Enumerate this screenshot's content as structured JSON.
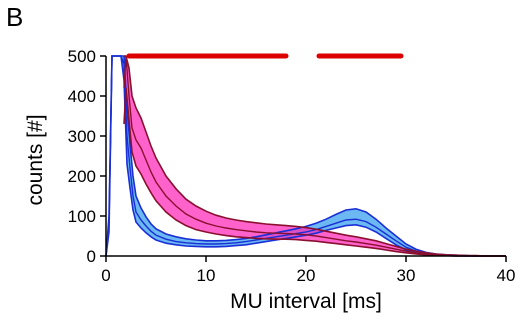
{
  "panel_label": "B",
  "colors": {
    "blue_band": "#3aa0ee",
    "blue_line": "#1a2fd6",
    "pink_band": "#ff2db8",
    "dark_line": "#8a1030",
    "significance": "#dd0000",
    "axis": "#000000"
  },
  "chart_data": {
    "type": "line",
    "xlabel": "MU interval [ms]",
    "ylabel": "counts [#]",
    "xlim": [
      0,
      40
    ],
    "ylim": [
      0,
      500
    ],
    "xticks": [
      0,
      10,
      20,
      30,
      40
    ],
    "yticks": [
      0,
      100,
      200,
      300,
      400,
      500
    ],
    "grid": false,
    "legend": "none",
    "series": [
      {
        "color": "#1a2fd6",
        "band_color": "#3aa0ee",
        "x": [
          0,
          0.3,
          0.6,
          0.9,
          1.2,
          1.5,
          1.8,
          2.1,
          2.4,
          2.7,
          3.0,
          3.5,
          4.0,
          4.5,
          5.0,
          6.0,
          7.0,
          8.0,
          9.0,
          10.0,
          11.0,
          12.0,
          13.0,
          14.0,
          15.0,
          16.0,
          17.0,
          18.0,
          19.0,
          20.0,
          21.0,
          22.0,
          23.0,
          24.0,
          25.0,
          26.0,
          27.0,
          28.0,
          29.0,
          30.0,
          31.0,
          32.0,
          33.0,
          34.0,
          35.0,
          36.0,
          37.0,
          38.0,
          39.0,
          40.0
        ],
        "y": [
          0,
          80,
          500,
          500,
          500,
          500,
          480,
          300,
          220,
          150,
          110,
          90,
          75,
          62,
          52,
          42,
          36,
          33,
          31,
          30,
          30,
          31,
          33,
          36,
          40,
          44,
          48,
          52,
          56,
          60,
          66,
          74,
          82,
          90,
          92,
          86,
          72,
          55,
          38,
          22,
          12,
          6,
          3,
          2,
          1,
          0,
          0,
          0,
          0,
          0
        ],
        "lower": [
          0,
          60,
          500,
          500,
          500,
          500,
          440,
          230,
          170,
          115,
          85,
          70,
          58,
          48,
          40,
          32,
          28,
          25,
          24,
          23,
          23,
          24,
          26,
          28,
          32,
          36,
          40,
          44,
          48,
          52,
          57,
          64,
          70,
          76,
          78,
          72,
          60,
          44,
          28,
          15,
          8,
          4,
          2,
          1,
          0,
          0,
          0,
          0,
          0,
          0
        ],
        "upper": [
          0,
          100,
          500,
          500,
          500,
          500,
          500,
          370,
          280,
          200,
          150,
          120,
          98,
          80,
          68,
          55,
          48,
          43,
          40,
          38,
          38,
          39,
          41,
          44,
          48,
          53,
          58,
          63,
          68,
          74,
          82,
          92,
          104,
          115,
          118,
          110,
          92,
          70,
          50,
          30,
          17,
          9,
          5,
          3,
          2,
          1,
          0,
          0,
          0,
          0
        ]
      },
      {
        "color": "#8a1030",
        "band_color": "#ff2db8",
        "x": [
          1.8,
          2.0,
          2.3,
          2.6,
          3.0,
          3.5,
          4.0,
          4.5,
          5.0,
          6.0,
          7.0,
          8.0,
          9.0,
          10.0,
          11.0,
          12.0,
          13.0,
          14.0,
          15.0,
          16.0,
          17.0,
          18.0,
          19.0,
          20.0,
          21.0,
          22.0,
          23.0,
          24.0,
          25.0,
          26.0,
          27.0,
          28.0,
          29.0,
          30.0,
          31.0,
          32.0,
          33.0,
          34.0,
          35.0,
          36.0,
          37.0,
          38.0,
          39.0,
          40.0
        ],
        "y": [
          420,
          500,
          400,
          320,
          290,
          270,
          240,
          210,
          185,
          150,
          125,
          105,
          92,
          82,
          75,
          70,
          66,
          63,
          60,
          58,
          57,
          56,
          55,
          53,
          50,
          46,
          42,
          38,
          35,
          31,
          27,
          22,
          17,
          12,
          8,
          5,
          3,
          2,
          1,
          1,
          0,
          0,
          0,
          0
        ],
        "lower": [
          330,
          420,
          340,
          260,
          225,
          205,
          180,
          158,
          138,
          110,
          90,
          76,
          66,
          60,
          55,
          51,
          48,
          46,
          44,
          43,
          42,
          42,
          41,
          39,
          37,
          34,
          31,
          28,
          25,
          22,
          19,
          15,
          11,
          8,
          5,
          3,
          2,
          1,
          0,
          0,
          0,
          0,
          0,
          0
        ],
        "upper": [
          500,
          500,
          470,
          400,
          370,
          345,
          310,
          275,
          245,
          200,
          168,
          142,
          125,
          112,
          102,
          95,
          90,
          86,
          83,
          80,
          78,
          76,
          74,
          71,
          67,
          62,
          57,
          52,
          48,
          43,
          38,
          31,
          24,
          17,
          12,
          8,
          5,
          3,
          2,
          1,
          1,
          0,
          0,
          0
        ]
      }
    ],
    "significance_ranges": [
      [
        2.3,
        18.0
      ],
      [
        21.3,
        29.5
      ]
    ],
    "significance_level": 500
  }
}
